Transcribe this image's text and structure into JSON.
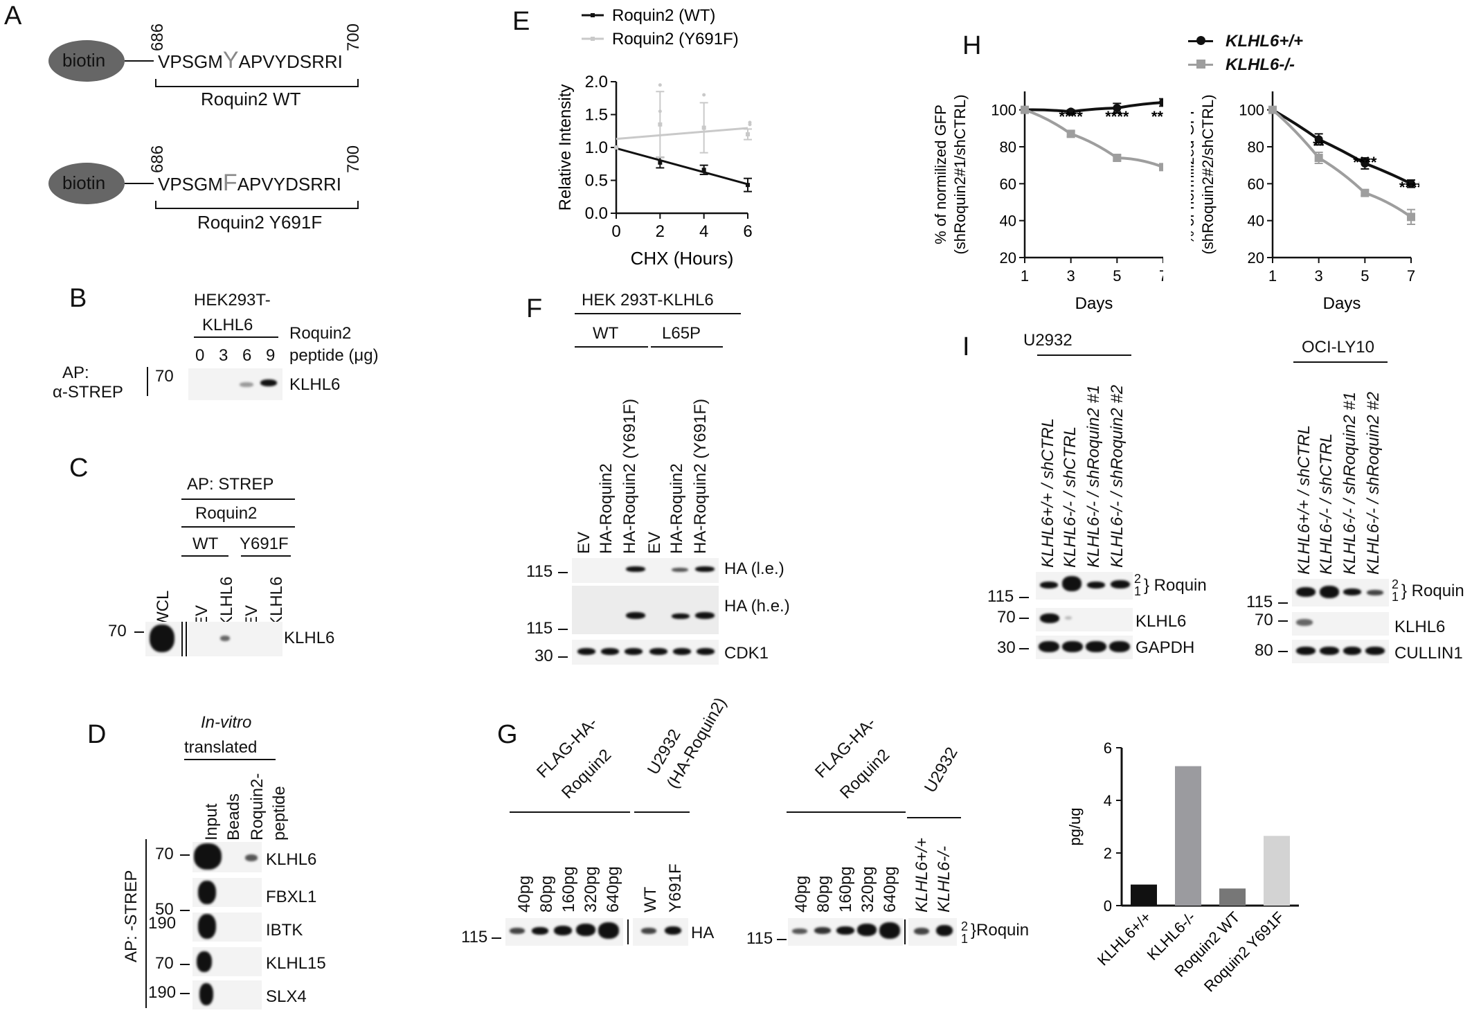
{
  "panel_letters": {
    "a": "A",
    "b": "B",
    "c": "C",
    "d": "D",
    "e": "E",
    "f": "F",
    "g": "G",
    "h": "H",
    "i": "I"
  },
  "panelA": {
    "biotin": "biotin",
    "num_start": "686",
    "num_end": "700",
    "wt_pre": "VPSGM",
    "wt_mid": "Y",
    "wt_post": "APVYDSRRI",
    "wt_label": "Roquin2 WT",
    "mut_pre": "VPSGM",
    "mut_mid": "F",
    "mut_post": "APVYDSRRI",
    "mut_label": "Roquin2 Y691F"
  },
  "panelB": {
    "cell_line_1": "HEK293T-",
    "cell_line_2": "KLHL6",
    "peptide_1": "Roquin2",
    "peptide_2": "peptide (μg)",
    "lanes": [
      "0",
      "3",
      "6",
      "9"
    ],
    "ap_1": "AP:",
    "ap_2": "α-STREP",
    "marker": "70",
    "band": "KLHL6"
  },
  "panelC": {
    "ap": "AP: STREP",
    "roquin": "Roquin2",
    "wt": "WT",
    "mut": "Y691F",
    "lanes": [
      "WCL",
      "EV",
      "KLHL6",
      "EV",
      "KLHL6"
    ],
    "marker": "70",
    "band": "KLHL6"
  },
  "panelD": {
    "invitro": "In-vitro",
    "translated": "translated",
    "lanes": [
      "Input",
      "Beads",
      "Roquin2-",
      "peptide"
    ],
    "ap": "AP: -STREP",
    "rows": [
      {
        "marker": "70",
        "label": "KLHL6"
      },
      {
        "marker": "50",
        "label": "FBXL1"
      },
      {
        "marker": "190",
        "label": "IBTK"
      },
      {
        "marker": "70",
        "label": "KLHL15"
      },
      {
        "marker": "190",
        "label": "SLX4"
      }
    ]
  },
  "panelF": {
    "cell": "HEK 293T-KLHL6",
    "wt": "WT",
    "mut": "L65P",
    "lanes": [
      "EV",
      "HA-Roquin2",
      "HA-Roquin2 (Y691F)",
      "EV",
      "HA-Roquin2",
      "HA-Roquin2 (Y691F)"
    ],
    "rows": [
      {
        "marker": "115",
        "label": "HA (l.e.)"
      },
      {
        "marker": "115",
        "label": "HA (h.e.)"
      },
      {
        "marker": "30",
        "label": "CDK1"
      }
    ]
  },
  "panelG": {
    "flag_1": "FLAG-HA-",
    "flag_2": "Roquin2",
    "u2932_1": "U2932",
    "u2932_2": "(HA-Roquin2)",
    "amounts": [
      "40pg",
      "80pg",
      "160pg",
      "320pg",
      "640pg"
    ],
    "left_lanes2": [
      "WT",
      "Y691F"
    ],
    "right_lanes2": [
      "KLHL6+/+",
      "KLHL6-/-"
    ],
    "u2932_right": "U2932",
    "marker": "115",
    "left_band": "HA",
    "right_band": "}Roquin",
    "iso2": "2",
    "iso1": "1"
  },
  "panelI": {
    "left_title": "U2932",
    "right_title": "OCI-LY10",
    "lanes": [
      "KLHL6+/+ / shCTRL",
      "KLHL6-/- / shCTRL",
      "KLHL6-/- / shRoquin2 #1",
      "KLHL6-/- / shRoquin2 #2"
    ],
    "left_rows": [
      {
        "marker": "115",
        "label": "} Roquin"
      },
      {
        "marker": "70",
        "label": "KLHL6"
      },
      {
        "marker": "30",
        "label": "GAPDH"
      }
    ],
    "right_rows": [
      {
        "marker": "115",
        "label": "} Roquin"
      },
      {
        "marker": "70",
        "label": "KLHL6"
      },
      {
        "marker": "80",
        "label": "CULLIN1"
      }
    ],
    "iso2": "2",
    "iso1": "1"
  },
  "chart_data": [
    {
      "id": "E",
      "type": "line",
      "xlabel": "CHX (Hours)",
      "ylabel": "Relative Intensity",
      "xlim": [
        0,
        6
      ],
      "ylim": [
        0,
        2.0
      ],
      "xticks": [
        "0",
        "2",
        "4",
        "6"
      ],
      "yticks": [
        "0.0",
        "0.5",
        "1.0",
        "1.5",
        "2.0"
      ],
      "legend_position": "top",
      "series": [
        {
          "name": "Roquin2 (WT)",
          "color": "#111111",
          "x": [
            0,
            2,
            4,
            6
          ],
          "y": [
            1.0,
            0.77,
            0.66,
            0.43
          ],
          "err": [
            0.0,
            0.08,
            0.07,
            0.1
          ]
        },
        {
          "name": "Roquin2 (Y691F)",
          "color": "#c9c9c9",
          "x": [
            0,
            2,
            4,
            6
          ],
          "y": [
            1.0,
            1.35,
            1.3,
            1.2
          ],
          "err": [
            0.0,
            0.5,
            0.38,
            0.08
          ],
          "scatter": [
            [
              2,
              1.95
            ],
            [
              2,
              1.55
            ],
            [
              4,
              1.8
            ],
            [
              4,
              1.3
            ],
            [
              6,
              1.38
            ],
            [
              6,
              1.35
            ]
          ]
        }
      ]
    },
    {
      "id": "H1",
      "type": "line",
      "xlabel": "Days",
      "ylabel": "% of normilized GFP",
      "ylabel2": "(shRoquin2#1/shCTRL)",
      "xlim": [
        1,
        7
      ],
      "ylim": [
        20,
        110
      ],
      "xticks": [
        "1",
        "3",
        "5",
        "7"
      ],
      "yticks": [
        "20",
        "40",
        "60",
        "80",
        "100"
      ],
      "legend_position": "top",
      "series": [
        {
          "name": "KLHL6+/+",
          "color": "#111111",
          "x": [
            1,
            3,
            5,
            7
          ],
          "y": [
            100,
            99,
            101,
            104
          ],
          "err": [
            0,
            1,
            2.5,
            2
          ]
        },
        {
          "name": "KLHL6-/-",
          "color": "#9e9e9e",
          "x": [
            1,
            3,
            5,
            7
          ],
          "y": [
            100,
            87,
            74,
            69
          ],
          "err": [
            0,
            1.5,
            1.5,
            1
          ]
        }
      ],
      "annotations": [
        {
          "x": 3,
          "text": "****"
        },
        {
          "x": 5,
          "text": "****"
        },
        {
          "x": 7,
          "text": "****"
        }
      ]
    },
    {
      "id": "H2",
      "type": "line",
      "xlabel": "Days",
      "ylabel": "% of normilized GFP",
      "ylabel2": "(shRoquin2#2/shCTRL)",
      "xlim": [
        1,
        7
      ],
      "ylim": [
        20,
        110
      ],
      "xticks": [
        "1",
        "3",
        "5",
        "7"
      ],
      "yticks": [
        "20",
        "40",
        "60",
        "80",
        "100"
      ],
      "series": [
        {
          "name": "KLHL6+/+",
          "color": "#111111",
          "x": [
            1,
            3,
            5,
            7
          ],
          "y": [
            100,
            84,
            71,
            60
          ],
          "err": [
            0,
            3,
            3,
            2
          ]
        },
        {
          "name": "KLHL6-/-",
          "color": "#9e9e9e",
          "x": [
            1,
            3,
            5,
            7
          ],
          "y": [
            100,
            74,
            55,
            42
          ],
          "err": [
            0,
            3,
            1.5,
            4
          ]
        }
      ],
      "annotations": [
        {
          "x": 3,
          "text": "**"
        },
        {
          "x": 5,
          "text": "****"
        },
        {
          "x": 7,
          "text": "****"
        }
      ]
    },
    {
      "id": "G-bar",
      "type": "bar",
      "ylabel": "pg/ug",
      "ylim": [
        0,
        6
      ],
      "yticks": [
        "0",
        "2",
        "4",
        "6"
      ],
      "categories": [
        "KLHL6+/+",
        "KLHL6-/-",
        "Roquin2 WT",
        "Roquin2 Y691F"
      ],
      "values": [
        0.8,
        5.3,
        0.65,
        2.65
      ],
      "colors": [
        "#111111",
        "#9b9b9f",
        "#777777",
        "#d3d3d3"
      ]
    }
  ]
}
